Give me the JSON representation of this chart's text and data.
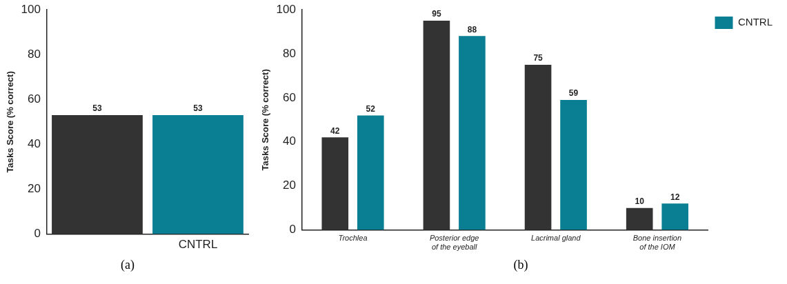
{
  "chart_data": [
    {
      "type": "bar",
      "ylabel": "Tasks Score (% correct)",
      "categories": [
        null,
        "CNTRL"
      ],
      "values": [
        53,
        53
      ],
      "colors": [
        "#333333",
        "#0a7f93"
      ],
      "ylim": [
        0,
        100
      ],
      "yticks": [
        0,
        20,
        40,
        60,
        80,
        100
      ],
      "grid": false,
      "data_labels": true,
      "legend": false,
      "annotations": [
        "(a)"
      ]
    },
    {
      "type": "bar",
      "ylabel": "Tasks Score (% correct)",
      "categories": [
        "Trochlea",
        "Posterior edge of the eyeball",
        "Lacrimal gland",
        "Bone insertion of the IOM"
      ],
      "series": [
        {
          "color": "#333333",
          "values": [
            42,
            95,
            75,
            10
          ]
        },
        {
          "name": "CNTRL",
          "color": "#0a7f93",
          "values": [
            52,
            88,
            59,
            12
          ]
        }
      ],
      "ylim": [
        0,
        100
      ],
      "yticks": [
        0,
        20,
        40,
        60,
        80,
        100
      ],
      "grid": false,
      "data_labels": true,
      "legend": "top right",
      "annotations": [
        "(b)"
      ]
    }
  ]
}
